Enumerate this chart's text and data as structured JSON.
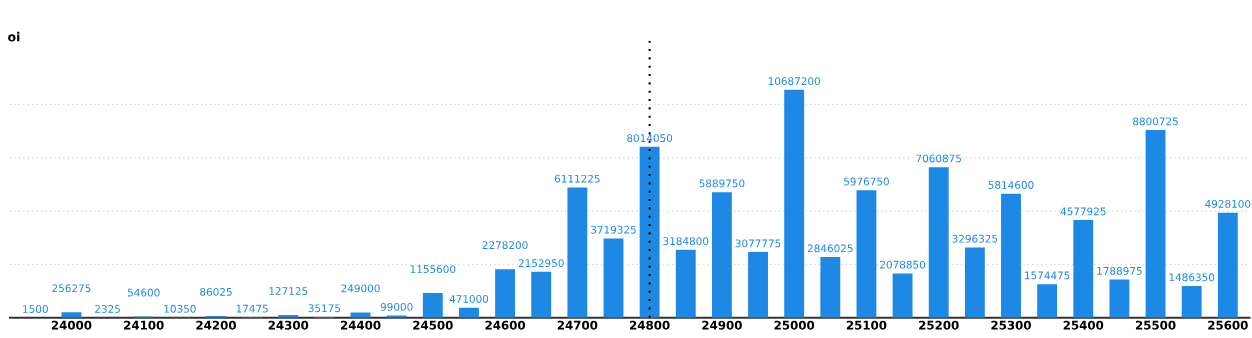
{
  "chart_data": {
    "type": "bar",
    "ylabel": "oi",
    "categories": [
      null,
      "24000",
      null,
      "24100",
      null,
      "24200",
      null,
      "24300",
      null,
      "24400",
      null,
      "24500",
      null,
      "24600",
      null,
      "24700",
      null,
      "24800",
      null,
      "24900",
      null,
      "25000",
      null,
      "25100",
      null,
      "25200",
      null,
      "25300",
      null,
      "25400",
      null,
      "25500",
      null,
      "25600"
    ],
    "values": [
      1500,
      256275,
      2325,
      54600,
      10350,
      86025,
      17475,
      127125,
      35175,
      249000,
      99000,
      1155600,
      471000,
      2278200,
      2152950,
      6111225,
      3719325,
      8014050,
      3184800,
      5889750,
      3077775,
      10687200,
      2846025,
      5976750,
      2078850,
      7060875,
      3296325,
      5814600,
      1574475,
      4577925,
      1788975,
      8800725,
      1486350,
      4928100
    ],
    "color": "#1e88e5",
    "data_labels": true,
    "ylim": [
      0,
      13000000
    ],
    "yticks": [
      {
        "value": 0,
        "label": null
      },
      {
        "value": 2500000,
        "label": null
      },
      {
        "value": 5000000,
        "label": null
      },
      {
        "value": 7500000,
        "label": null
      },
      {
        "value": 10000000,
        "label": null
      }
    ],
    "tick_labels": "x",
    "grid": "y",
    "ref_lines": [
      {
        "axis": "x",
        "value": "24800",
        "line_style": "dotted",
        "color": "#000000"
      }
    ]
  }
}
